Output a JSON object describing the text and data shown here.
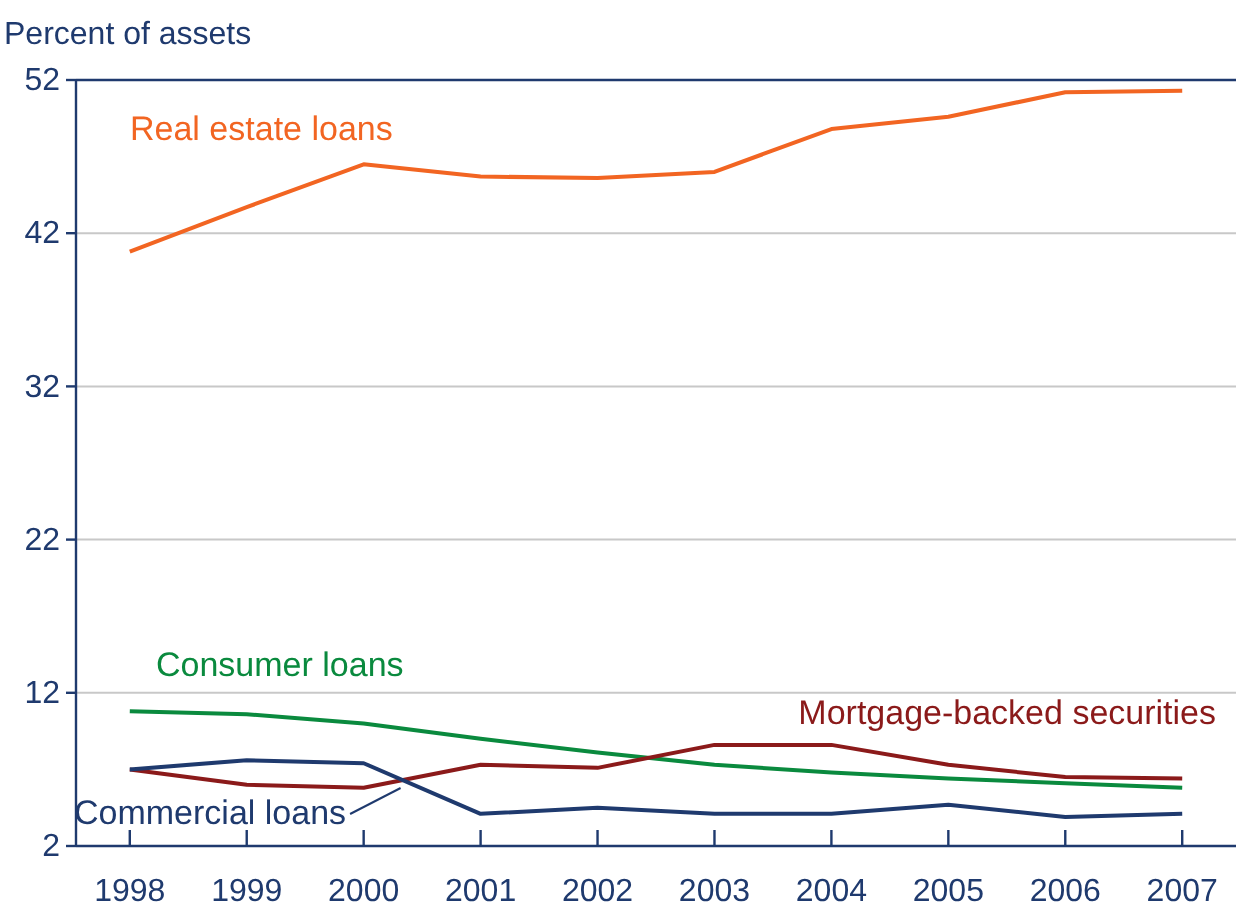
{
  "chart_data": {
    "type": "line",
    "ylabel": "Percent of assets",
    "categories": [
      "1998",
      "1999",
      "2000",
      "2001",
      "2002",
      "2003",
      "2004",
      "2005",
      "2006",
      "2007"
    ],
    "series": [
      {
        "name": "Real estate loans",
        "color": "#f26522",
        "values": [
          40.8,
          43.7,
          46.5,
          45.7,
          45.6,
          46.0,
          48.8,
          49.6,
          51.2,
          51.3
        ]
      },
      {
        "name": "Consumer loans",
        "color": "#0a8a3e",
        "values": [
          10.8,
          10.6,
          10.0,
          9.0,
          8.1,
          7.3,
          6.8,
          6.4,
          6.1,
          5.8
        ]
      },
      {
        "name": "Mortgage-backed securities",
        "color": "#8b1a1a",
        "values": [
          7.0,
          6.0,
          5.8,
          7.3,
          7.1,
          8.6,
          8.6,
          7.3,
          6.5,
          6.4
        ]
      },
      {
        "name": "Commercial loans",
        "color": "#1f3a6e",
        "values": [
          7.0,
          7.6,
          7.4,
          4.1,
          4.5,
          4.1,
          4.1,
          4.7,
          3.9,
          4.1
        ]
      }
    ],
    "ylim": [
      2,
      52
    ],
    "yticks": [
      2,
      12,
      22,
      32,
      42,
      52
    ],
    "grid": "y",
    "line_style": "solid",
    "marker": "none"
  }
}
